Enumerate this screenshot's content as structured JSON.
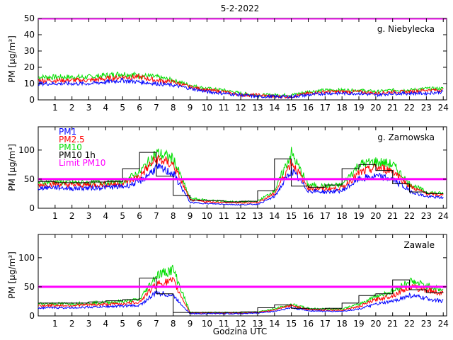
{
  "title": "5-2-2022",
  "xlabel": "Godzina UTC",
  "colors": {
    "pm1": "#0000ff",
    "pm25": "#ff0000",
    "pm10": "#00dd00",
    "pm10_1h": "#000000",
    "limit": "#ff00ff"
  },
  "chart_data": [
    {
      "type": "line",
      "station": "g. Niebylecka",
      "ylabel": "PM [µg/m³]",
      "xlim": [
        0,
        24.2
      ],
      "ylim": [
        0,
        50
      ],
      "yticks": [
        0,
        10,
        20,
        30,
        40,
        50
      ],
      "xticks": [
        1,
        2,
        3,
        4,
        5,
        6,
        7,
        8,
        9,
        10,
        11,
        12,
        13,
        14,
        15,
        16,
        17,
        18,
        19,
        20,
        21,
        22,
        23,
        24
      ],
      "limit_value": 50,
      "hours": [
        0,
        1,
        2,
        3,
        4,
        5,
        6,
        7,
        8,
        9,
        10,
        11,
        12,
        13,
        14,
        15,
        16,
        17,
        18,
        19,
        20,
        21,
        22,
        23,
        24
      ],
      "series": [
        {
          "key": "pm1",
          "values": [
            10,
            10,
            10,
            10,
            11,
            12,
            11,
            10,
            9,
            7,
            5,
            4,
            3,
            2,
            2,
            2,
            3,
            4,
            4,
            4,
            3,
            4,
            4,
            4,
            5
          ]
        },
        {
          "key": "pm25",
          "values": [
            12,
            12,
            12,
            12,
            13,
            14,
            14,
            12,
            11,
            8,
            6,
            5,
            3,
            3,
            2,
            2,
            4,
            5,
            5,
            5,
            4,
            5,
            5,
            6,
            6
          ]
        },
        {
          "key": "pm10",
          "values": [
            14,
            14,
            14,
            14,
            15,
            16,
            15,
            14,
            12,
            9,
            7,
            6,
            4,
            3,
            3,
            3,
            5,
            6,
            6,
            6,
            5,
            6,
            6,
            7,
            7
          ]
        }
      ]
    },
    {
      "type": "line",
      "station": "g. Zarnowska",
      "ylabel": "PM [µg/m³]",
      "xlim": [
        0,
        24.2
      ],
      "ylim": [
        0,
        140
      ],
      "yticks": [
        0,
        50,
        100
      ],
      "xticks": [
        1,
        2,
        3,
        4,
        5,
        6,
        7,
        8,
        9,
        10,
        11,
        12,
        13,
        14,
        15,
        16,
        17,
        18,
        19,
        20,
        21,
        22,
        23,
        24
      ],
      "limit_value": 50,
      "legend": {
        "placement": "top-left",
        "entries": [
          "PM1",
          "PM2.5",
          "PM10",
          "PM10 1h",
          "Limit PM10"
        ]
      },
      "hours": [
        0,
        1,
        2,
        3,
        4,
        5,
        6,
        7,
        8,
        9,
        10,
        11,
        12,
        13,
        14,
        15,
        16,
        17,
        18,
        19,
        20,
        21,
        22,
        23,
        24
      ],
      "series": [
        {
          "key": "pm1",
          "values": [
            35,
            36,
            34,
            35,
            36,
            37,
            45,
            70,
            60,
            10,
            8,
            7,
            6,
            7,
            20,
            65,
            30,
            28,
            30,
            50,
            55,
            50,
            30,
            20,
            18
          ]
        },
        {
          "key": "pm25",
          "values": [
            40,
            42,
            40,
            40,
            41,
            42,
            55,
            85,
            75,
            14,
            11,
            10,
            9,
            10,
            25,
            80,
            35,
            33,
            35,
            60,
            70,
            65,
            38,
            25,
            22
          ]
        },
        {
          "key": "pm10",
          "values": [
            44,
            46,
            44,
            44,
            45,
            46,
            62,
            95,
            85,
            17,
            14,
            12,
            11,
            12,
            30,
            95,
            40,
            38,
            40,
            75,
            80,
            75,
            42,
            28,
            25
          ]
        }
      ],
      "pm10_1h": [
        46,
        44,
        44,
        45,
        46,
        68,
        96,
        55,
        22,
        14,
        13,
        11,
        12,
        30,
        85,
        38,
        36,
        40,
        68,
        75,
        65,
        42,
        28,
        25
      ]
    },
    {
      "type": "line",
      "station": "Zawale",
      "ylabel": "PM [µg/m³]",
      "xlim": [
        0,
        24.2
      ],
      "ylim": [
        0,
        140
      ],
      "yticks": [
        0,
        50,
        100
      ],
      "xticks": [
        1,
        2,
        3,
        4,
        5,
        6,
        7,
        8,
        9,
        10,
        11,
        12,
        13,
        14,
        15,
        16,
        17,
        18,
        19,
        20,
        21,
        22,
        23,
        24
      ],
      "limit_value": 50,
      "hours": [
        0,
        1,
        2,
        3,
        4,
        5,
        6,
        7,
        8,
        9,
        10,
        11,
        12,
        13,
        14,
        15,
        16,
        17,
        18,
        19,
        20,
        21,
        22,
        23,
        24
      ],
      "series": [
        {
          "key": "pm1",
          "values": [
            14,
            14,
            14,
            15,
            16,
            17,
            18,
            40,
            35,
            4,
            4,
            4,
            4,
            5,
            8,
            14,
            9,
            8,
            8,
            12,
            20,
            25,
            35,
            30,
            25
          ]
        },
        {
          "key": "pm25",
          "values": [
            18,
            18,
            18,
            19,
            20,
            21,
            24,
            55,
            60,
            5,
            5,
            5,
            5,
            6,
            10,
            18,
            11,
            10,
            10,
            16,
            28,
            35,
            50,
            45,
            38
          ]
        },
        {
          "key": "pm10",
          "values": [
            21,
            21,
            21,
            22,
            23,
            25,
            28,
            70,
            80,
            6,
            6,
            6,
            6,
            7,
            12,
            20,
            13,
            12,
            12,
            20,
            34,
            42,
            60,
            52,
            44
          ]
        }
      ],
      "pm10_1h": [
        22,
        22,
        22,
        24,
        26,
        28,
        65,
        38,
        6,
        6,
        6,
        6,
        7,
        14,
        19,
        13,
        12,
        13,
        22,
        35,
        38,
        62,
        45,
        40
      ]
    }
  ]
}
